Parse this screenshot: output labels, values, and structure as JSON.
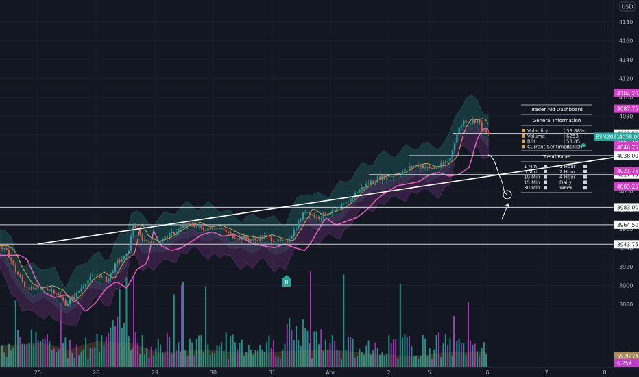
{
  "currency": "USD",
  "chart_data": {
    "type": "candlestick",
    "symbol": "ESM2021",
    "last_price_label": "ESM2021",
    "last_price": "4058.00",
    "y_range": [
      3860,
      4190
    ],
    "y_ticks": [
      4180,
      4160,
      4140,
      4120,
      4100,
      4080,
      4060,
      4040,
      4020,
      4000,
      3980,
      3960,
      3940,
      3920,
      3900,
      3880
    ],
    "x_ticks": [
      {
        "label": "25",
        "idx": 0
      },
      {
        "label": "26",
        "idx": 1
      },
      {
        "label": "29",
        "idx": 2
      },
      {
        "label": "30",
        "idx": 3
      },
      {
        "label": "31",
        "idx": 4
      },
      {
        "label": "Apr",
        "idx": 5
      },
      {
        "label": "2",
        "idx": 6
      },
      {
        "label": "5",
        "idx": 7
      },
      {
        "label": "6",
        "idx": 8
      },
      {
        "label": "7",
        "idx": 9
      },
      {
        "label": "8",
        "idx": 10
      }
    ],
    "levels": [
      {
        "price": 4061.5,
        "label": "4061.50",
        "style": "white"
      },
      {
        "price": 4038.0,
        "label": "4038.00",
        "style": "white"
      },
      {
        "price": 4017.75,
        "label": "4017.75",
        "style": "white"
      },
      {
        "price": 3983.0,
        "label": "3983.00",
        "style": "white"
      },
      {
        "price": 3964.5,
        "label": "3964.50",
        "style": "white"
      },
      {
        "price": 3943.75,
        "label": "3943.75",
        "style": "white"
      }
    ],
    "magenta_tags": [
      {
        "price": 4104.25,
        "label": "4104.25"
      },
      {
        "price": 4087.75,
        "label": "4087.75"
      },
      {
        "price": 4054.75,
        "label": "4054.75"
      },
      {
        "price": 4046.75,
        "label": "4046.75"
      },
      {
        "price": 4021.75,
        "label": "4021.75"
      },
      {
        "price": 4005.25,
        "label": "4005.25"
      }
    ],
    "volume_tags": [
      {
        "label": "59.927K",
        "color": "#a58a54"
      },
      {
        "label": "6.25K",
        "color": "#c13ecc"
      }
    ],
    "trendline": {
      "from": {
        "day": 0,
        "price": 3944
      },
      "to": {
        "day": 10.2,
        "price": 4036
      }
    },
    "buy_marker": "B",
    "dashboard": {
      "title": "Trader Aid Dashboard",
      "section1": "General Information",
      "rows": [
        {
          "label": "Volatility",
          "value": "53.88%"
        },
        {
          "label": "Volume",
          "value": "6253"
        },
        {
          "label": "RSI",
          "value": "58.85"
        },
        {
          "label": "Current Sentiment",
          "value": "Bullish"
        }
      ],
      "section2": "Trend Panel",
      "trend_left": [
        "1 Min",
        "5 Min",
        "10 Min",
        "15 Min",
        "30 Min"
      ],
      "trend_right": [
        "1 Hour",
        "2 Hour",
        "4 Hour",
        "Daily",
        "Week"
      ]
    },
    "colors": {
      "up": "#26a69a",
      "down": "#ef5350",
      "magenta": "#d53ec6",
      "ma_pink": "#e060b8",
      "ma_orange": "#d9a35a",
      "band_teal": "#1f5e5c",
      "band_purple": "#5b2a66",
      "volume_teal": "#26a69a",
      "volume_magenta": "#b638c5",
      "volume_area": "#4a3a22"
    }
  }
}
